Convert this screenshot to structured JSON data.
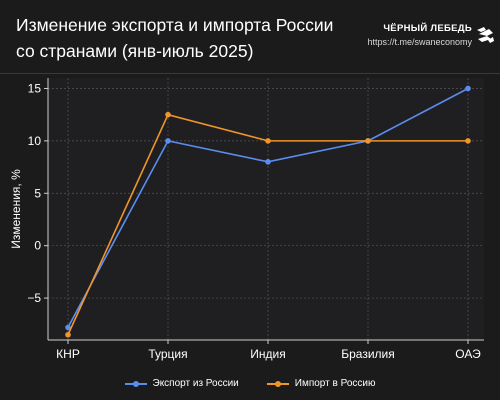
{
  "header": {
    "title": "Изменение экспорта и импорта России со странами (янв-июль 2025)",
    "brand_name": "ЧЁРНЫЙ ЛЕБЕДЬ",
    "brand_url": "https://t.me/swaneconomy",
    "logo_icon": "swan-logo-icon"
  },
  "colors": {
    "background": "#1b1b1c",
    "export": "#5b8def",
    "import": "#f0952a",
    "grid": "#55565a"
  },
  "chart_data": {
    "type": "line",
    "ylabel": "Изменения, %",
    "xlabel": "",
    "categories": [
      "КНР",
      "Турция",
      "Индия",
      "Бразилия",
      "ОАЭ"
    ],
    "ylim": [
      -9,
      16
    ],
    "yticks": [
      -5,
      0,
      5,
      10,
      15
    ],
    "ytick_labels": [
      "−5",
      "0",
      "5",
      "10",
      "15"
    ],
    "grid": true,
    "legend_position": "bottom",
    "series": [
      {
        "name": "Экспорт из России",
        "color": "#5b8def",
        "values": [
          -7.8,
          10,
          8,
          10,
          15
        ]
      },
      {
        "name": "Импорт в Россию",
        "color": "#f0952a",
        "values": [
          -8.5,
          12.5,
          10,
          10,
          10
        ]
      }
    ]
  }
}
